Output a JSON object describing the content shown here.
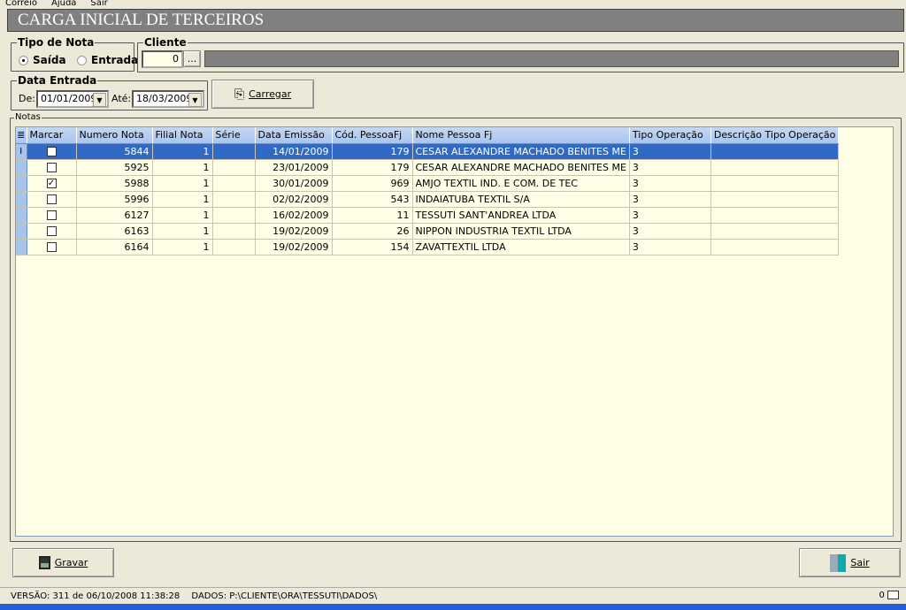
{
  "menu": [
    "Correio",
    "Ajuda",
    "Sair"
  ],
  "title": "CARGA INICIAL DE TERCEIROS",
  "tipo_nota": {
    "label": "Tipo de Nota",
    "options": [
      {
        "label": "Saída",
        "selected": true
      },
      {
        "label": "Entrada",
        "selected": false
      }
    ]
  },
  "cliente": {
    "label": "Cliente",
    "code": "0",
    "lookup_label": "...",
    "name": ""
  },
  "data_entrada": {
    "label": "Data Entrada",
    "de_label": "De:",
    "de_value": "01/01/2009",
    "ate_label": "Até:",
    "ate_value": "18/03/2009"
  },
  "carregar_label": "Carregar",
  "notas": {
    "label": "Notas",
    "columns": [
      "Marcar",
      "Numero Nota",
      "Filial Nota",
      "Série",
      "Data Emissão",
      "Cód. PessoaFj",
      "Nome Pessoa Fj",
      "Tipo Operação",
      "Descrição Tipo Operação"
    ],
    "rows": [
      {
        "marcar": false,
        "numero": "5844",
        "filial": "1",
        "serie": "",
        "data": "14/01/2009",
        "cod": "179",
        "nome": "CESAR ALEXANDRE MACHADO BENITES ME",
        "tipo": "3",
        "desc": "",
        "selected": true
      },
      {
        "marcar": false,
        "numero": "5925",
        "filial": "1",
        "serie": "",
        "data": "23/01/2009",
        "cod": "179",
        "nome": "CESAR ALEXANDRE MACHADO BENITES ME",
        "tipo": "3",
        "desc": ""
      },
      {
        "marcar": true,
        "numero": "5988",
        "filial": "1",
        "serie": "",
        "data": "30/01/2009",
        "cod": "969",
        "nome": "AMJO TEXTIL IND. E COM. DE TEC",
        "tipo": "3",
        "desc": ""
      },
      {
        "marcar": false,
        "numero": "5996",
        "filial": "1",
        "serie": "",
        "data": "02/02/2009",
        "cod": "543",
        "nome": "INDAIATUBA TEXTIL S/A",
        "tipo": "3",
        "desc": ""
      },
      {
        "marcar": false,
        "numero": "6127",
        "filial": "1",
        "serie": "",
        "data": "16/02/2009",
        "cod": "11",
        "nome": "TESSUTI SANT'ANDREA LTDA",
        "tipo": "3",
        "desc": ""
      },
      {
        "marcar": false,
        "numero": "6163",
        "filial": "1",
        "serie": "",
        "data": "19/02/2009",
        "cod": "26",
        "nome": "NIPPON INDUSTRIA TEXTIL LTDA",
        "tipo": "3",
        "desc": ""
      },
      {
        "marcar": false,
        "numero": "6164",
        "filial": "1",
        "serie": "",
        "data": "19/02/2009",
        "cod": "154",
        "nome": "ZAVATTEXTIL LTDA",
        "tipo": "3",
        "desc": ""
      }
    ]
  },
  "gravar_label": "Gravar",
  "sair_label": "Sair",
  "status": {
    "versao": "VERSÃO: 311 de 06/10/2008 11:38:28",
    "dados": "DADOS: P:\\CLIENTE\\ORA\\TESSUTI\\DADOS\\",
    "count": "0"
  }
}
